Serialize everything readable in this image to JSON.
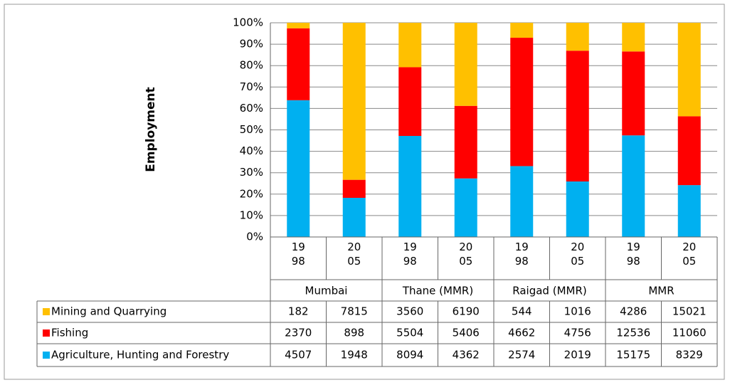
{
  "chart_data": {
    "type": "bar",
    "stacking": "percent",
    "y_label": "Employment",
    "categories": [
      "1998",
      "2005",
      "1998",
      "2005",
      "1998",
      "2005",
      "1998",
      "2005"
    ],
    "groups": [
      "Mumbai",
      "Thane (MMR)",
      "Raigad (MMR)",
      "MMR"
    ],
    "series": [
      {
        "name": "Mining and Quarrying",
        "color": "#ffc000",
        "values": [
          182,
          7815,
          3560,
          6190,
          544,
          1016,
          4286,
          15021
        ]
      },
      {
        "name": "Fishing",
        "color": "#ff0000",
        "values": [
          2370,
          898,
          5504,
          5406,
          4662,
          4756,
          12536,
          11060
        ]
      },
      {
        "name": "Agriculture, Hunting and Forestry",
        "color": "#00b0f0",
        "values": [
          4507,
          1948,
          8094,
          4362,
          2574,
          2019,
          15175,
          8329
        ]
      }
    ],
    "ylim": [
      0,
      100
    ],
    "yticks": [
      {
        "value": 0,
        "label": "0%"
      },
      {
        "value": 10,
        "label": "10%"
      },
      {
        "value": 20,
        "label": "20%"
      },
      {
        "value": 30,
        "label": "30%"
      },
      {
        "value": 40,
        "label": "40%"
      },
      {
        "value": 50,
        "label": "50%"
      },
      {
        "value": 60,
        "label": "60%"
      },
      {
        "value": 70,
        "label": "70%"
      },
      {
        "value": 80,
        "label": "80%"
      },
      {
        "value": 90,
        "label": "90%"
      },
      {
        "value": 100,
        "label": "100%"
      }
    ],
    "grid": true,
    "data_table": true
  }
}
